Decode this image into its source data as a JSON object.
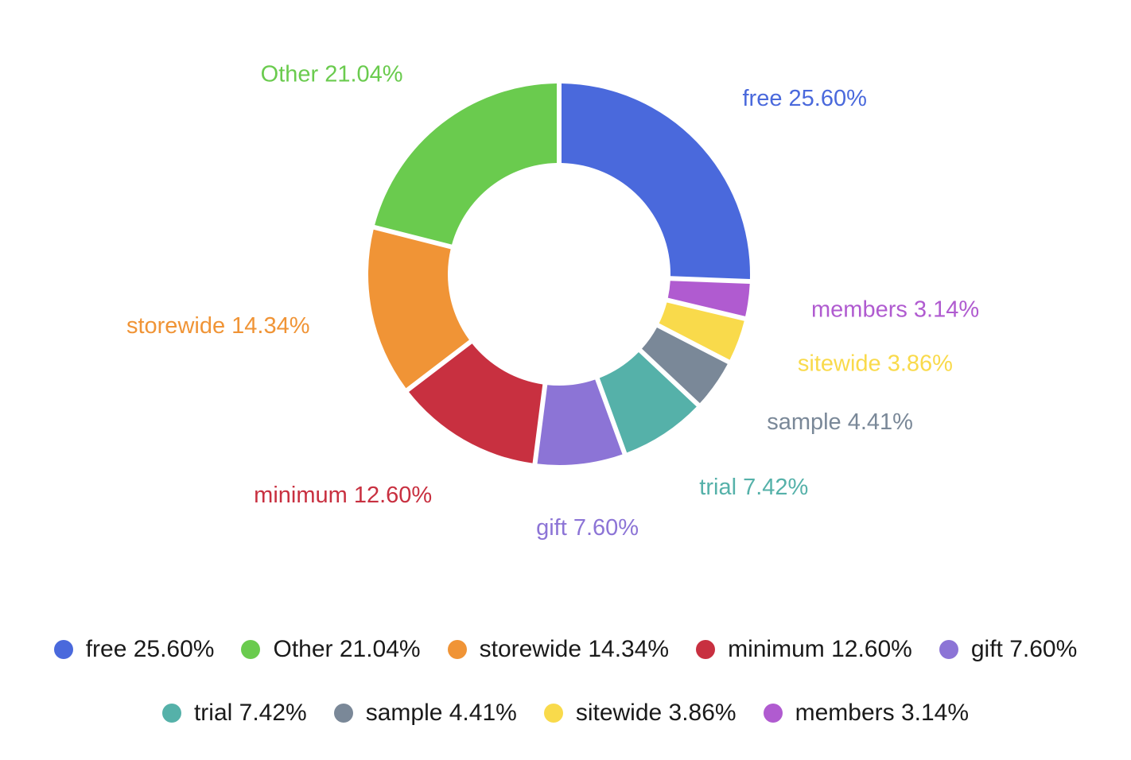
{
  "chart_data": {
    "type": "pie",
    "variant": "donut",
    "title": "",
    "slices": [
      {
        "name": "free",
        "value": 25.6,
        "label": "free 25.60%",
        "color": "#4a69dc"
      },
      {
        "name": "members",
        "value": 3.14,
        "label": "members 3.14%",
        "color": "#b05bd0"
      },
      {
        "name": "sitewide",
        "value": 3.86,
        "label": "sitewide 3.86%",
        "color": "#f9da4b"
      },
      {
        "name": "sample",
        "value": 4.41,
        "label": "sample 4.41%",
        "color": "#7a8898"
      },
      {
        "name": "trial",
        "value": 7.42,
        "label": "trial 7.42%",
        "color": "#55b1a9"
      },
      {
        "name": "gift",
        "value": 7.6,
        "label": "gift 7.60%",
        "color": "#8c74d6"
      },
      {
        "name": "minimum",
        "value": 12.6,
        "label": "minimum 12.60%",
        "color": "#c83040"
      },
      {
        "name": "storewide",
        "value": 14.34,
        "label": "storewide 14.34%",
        "color": "#f09436"
      },
      {
        "name": "Other",
        "value": 21.04,
        "label": "Other 21.04%",
        "color": "#6acb4e"
      }
    ],
    "legend": {
      "placement": "bottom",
      "rows": [
        [
          {
            "label": "free 25.60%",
            "color": "#4a69dc"
          },
          {
            "label": "Other 21.04%",
            "color": "#6acb4e"
          },
          {
            "label": "storewide 14.34%",
            "color": "#f09436"
          },
          {
            "label": "minimum 12.60%",
            "color": "#c83040"
          },
          {
            "label": "gift 7.60%",
            "color": "#8c74d6"
          }
        ],
        [
          {
            "label": "trial 7.42%",
            "color": "#55b1a9"
          },
          {
            "label": "sample 4.41%",
            "color": "#7a8898"
          },
          {
            "label": "sitewide 3.86%",
            "color": "#f9da4b"
          },
          {
            "label": "members 3.14%",
            "color": "#b05bd0"
          }
        ]
      ]
    }
  }
}
